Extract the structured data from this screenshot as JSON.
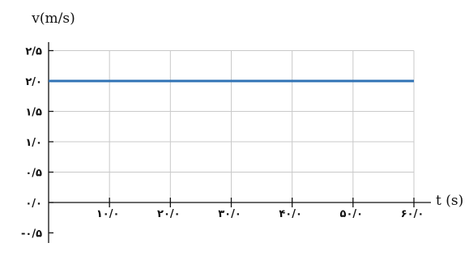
{
  "chart_data": {
    "type": "line",
    "y_axis_title": "v(m/s)",
    "x_axis_title": "t (s)",
    "y_ticks": [
      {
        "value": 2.5,
        "label": "۲/۵"
      },
      {
        "value": 2.0,
        "label": "۲/۰"
      },
      {
        "value": 1.5,
        "label": "۱/۵"
      },
      {
        "value": 1.0,
        "label": "۱/۰"
      },
      {
        "value": 0.5,
        "label": "۰/۵"
      },
      {
        "value": 0.0,
        "label": "۰/۰"
      },
      {
        "value": -0.5,
        "label": "-۰/۵"
      }
    ],
    "x_ticks": [
      {
        "value": 10,
        "label": "۱۰/۰"
      },
      {
        "value": 20,
        "label": "۲۰/۰"
      },
      {
        "value": 30,
        "label": "۳۰/۰"
      },
      {
        "value": 40,
        "label": "۴۰/۰"
      },
      {
        "value": 50,
        "label": "۵۰/۰"
      },
      {
        "value": 60,
        "label": "۶۰/۰"
      }
    ],
    "xlim": [
      0,
      60
    ],
    "ylim": [
      -1.0,
      2.75
    ],
    "grid": true,
    "series": [
      {
        "x": [
          0,
          60
        ],
        "y": [
          2.0,
          2.0
        ],
        "color": "#2f72b5"
      }
    ]
  }
}
